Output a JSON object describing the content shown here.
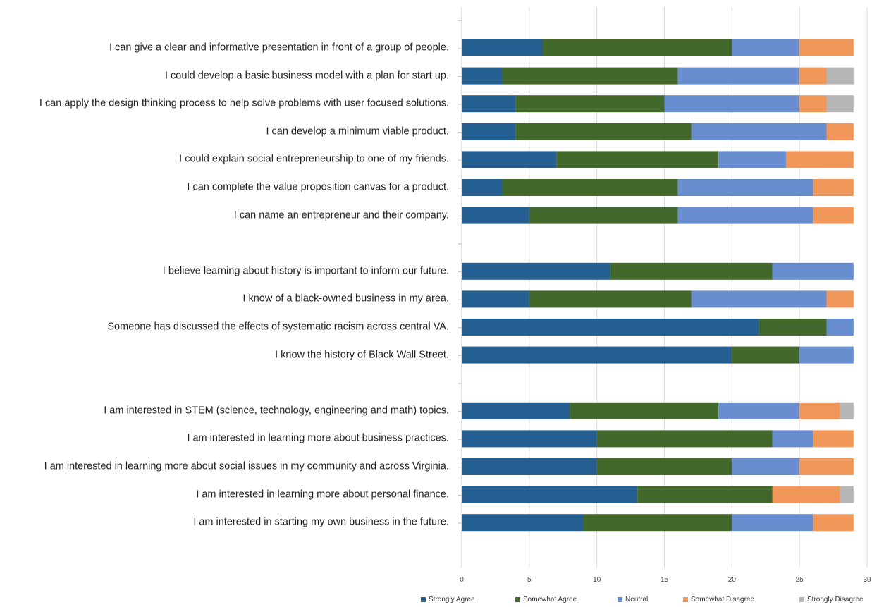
{
  "chart_data": {
    "type": "bar",
    "orientation": "horizontal",
    "stacked": true,
    "categories": [
      "I can give a clear and informative presentation in front of a group of people.",
      "I could develop a basic business model with a plan for start up.",
      "I can apply the design thinking process to help solve problems with user focused solutions.",
      "I can develop a minimum viable product.",
      "I could explain social entrepreneurship to one of my friends.",
      "I can complete the value proposition canvas for a product.",
      "I can name an entrepreneur and their company.",
      "",
      "I believe learning about history is important to inform our future.",
      "I know of a black-owned business in my area.",
      "Someone has discussed the effects of systematic racism across central VA.",
      "I know the history of Black Wall Street.",
      "",
      "I am interested in STEM (science, technology, engineering and math) topics.",
      "I am interested in learning more about business practices.",
      "I am interested in learning more about social issues in my community and across Virginia.",
      "I am interested in learning more about personal finance.",
      "I am interested in starting my own business in the future."
    ],
    "series": [
      {
        "name": "Strongly Agree",
        "color": "#255E91",
        "values": [
          6,
          3,
          4,
          4,
          7,
          3,
          5,
          0,
          11,
          5,
          22,
          20,
          0,
          8,
          10,
          10,
          13,
          9
        ]
      },
      {
        "name": "Somewhat Agree",
        "color": "#43682B",
        "values": [
          14,
          13,
          11,
          13,
          12,
          13,
          11,
          0,
          12,
          12,
          5,
          5,
          0,
          11,
          13,
          10,
          10,
          11
        ]
      },
      {
        "name": "Neutral",
        "color": "#698ED0",
        "values": [
          5,
          9,
          10,
          10,
          5,
          10,
          10,
          0,
          6,
          10,
          2,
          4,
          0,
          6,
          3,
          5,
          0,
          6
        ]
      },
      {
        "name": "Somewhat Disagree",
        "color": "#F1975A",
        "values": [
          4,
          2,
          2,
          2,
          5,
          3,
          3,
          0,
          0,
          2,
          0,
          0,
          0,
          3,
          3,
          4,
          5,
          3
        ]
      },
      {
        "name": "Strongly Disagree",
        "color": "#B7B7B7",
        "values": [
          0,
          2,
          2,
          0,
          0,
          0,
          0,
          0,
          0,
          0,
          0,
          0,
          0,
          1,
          0,
          0,
          1,
          0
        ]
      }
    ],
    "xlim": [
      0,
      30
    ],
    "xticks": [
      "0",
      "5",
      "10",
      "15",
      "20",
      "25",
      "30"
    ],
    "grid": true,
    "legend_position": "bottom"
  }
}
